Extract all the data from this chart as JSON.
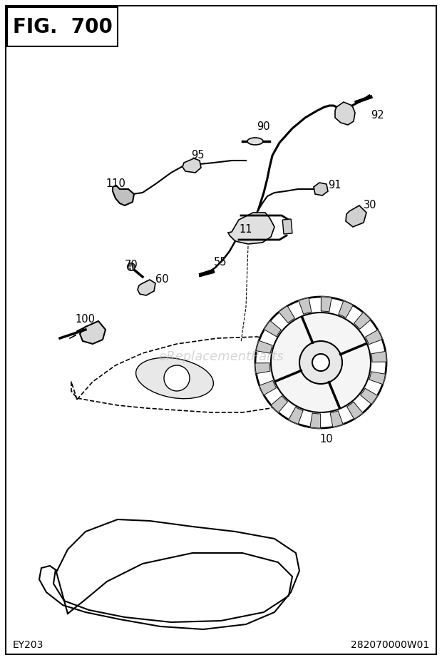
{
  "title": "FIG.  700",
  "bottom_left": "EY203",
  "bottom_right": "282070000W01",
  "bg_color": "#ffffff",
  "line_color": "#000000",
  "watermark": "eReplacementParts",
  "fig_w": 620,
  "fig_h": 925
}
